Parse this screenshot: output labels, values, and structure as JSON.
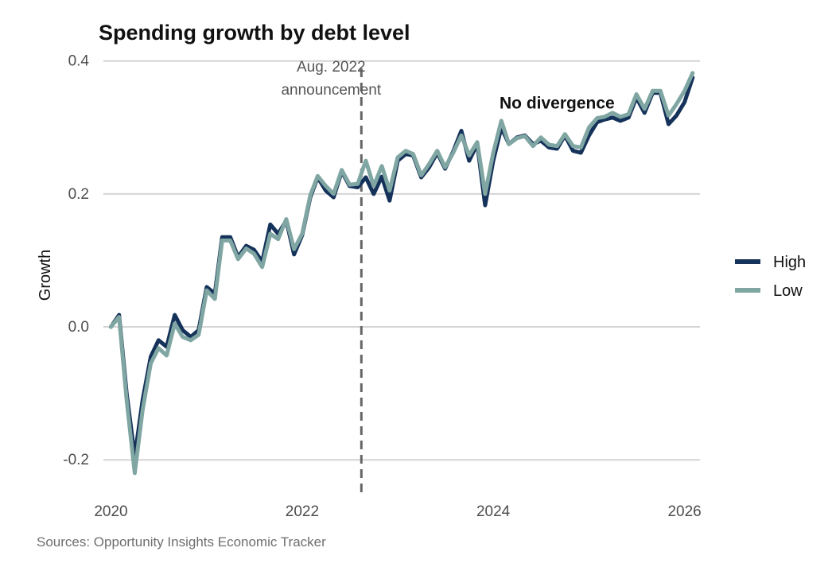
{
  "chart_data": {
    "type": "line",
    "title": "Spending growth by debt level",
    "xlabel": "",
    "ylabel": "Growth",
    "source": "Sources: Opportunity Insights Economic Tracker",
    "xlim": [
      "2019-11-15",
      "2026-03-01"
    ],
    "ylim": [
      -0.25,
      0.42
    ],
    "x_ticks": [
      "2020-01-01",
      "2022-01-01",
      "2024-01-01",
      "2026-01-01"
    ],
    "x_tick_labels": [
      "2020",
      "2022",
      "2024",
      "2026"
    ],
    "y_ticks": [
      -0.2,
      0.0,
      0.2,
      0.4
    ],
    "y_tick_labels": [
      "-0.2",
      "0.0",
      "0.2",
      "0.4"
    ],
    "grid": "horizontal",
    "legend": {
      "position": "right",
      "entries": [
        "High",
        "Low"
      ]
    },
    "colors": {
      "High": "#15325a",
      "Low": "#7fa6a2"
    },
    "annotations": [
      {
        "type": "vline",
        "x": "2022-08-15",
        "line1": "Aug. 2022",
        "line2": "announcement",
        "color": "#666666"
      },
      {
        "type": "text",
        "x": "2024-09-01",
        "y": 0.338,
        "text": "No divergence"
      }
    ],
    "x": [
      "2020-01-01",
      "2020-02-01",
      "2020-03-01",
      "2020-04-01",
      "2020-05-01",
      "2020-06-01",
      "2020-07-01",
      "2020-08-01",
      "2020-09-01",
      "2020-10-01",
      "2020-11-01",
      "2020-12-01",
      "2021-01-01",
      "2021-02-01",
      "2021-03-01",
      "2021-04-01",
      "2021-05-01",
      "2021-06-01",
      "2021-07-01",
      "2021-08-01",
      "2021-09-01",
      "2021-10-01",
      "2021-11-01",
      "2021-12-01",
      "2022-01-01",
      "2022-02-01",
      "2022-03-01",
      "2022-04-01",
      "2022-05-01",
      "2022-06-01",
      "2022-07-01",
      "2022-08-01",
      "2022-09-01",
      "2022-10-01",
      "2022-11-01",
      "2022-12-01",
      "2023-01-01",
      "2023-02-01",
      "2023-03-01",
      "2023-04-01",
      "2023-05-01",
      "2023-06-01",
      "2023-07-01",
      "2023-08-01",
      "2023-09-01",
      "2023-10-01",
      "2023-11-01",
      "2023-12-01",
      "2024-01-01",
      "2024-02-01",
      "2024-03-01",
      "2024-04-01",
      "2024-05-01",
      "2024-06-01",
      "2024-07-01",
      "2024-08-01",
      "2024-09-01",
      "2024-10-01",
      "2024-11-01",
      "2024-12-01",
      "2025-01-01",
      "2025-02-01",
      "2025-03-01",
      "2025-04-01",
      "2025-05-01",
      "2025-06-01",
      "2025-07-01",
      "2025-08-01",
      "2025-09-01",
      "2025-10-01",
      "2025-11-01",
      "2025-12-01",
      "2026-01-01",
      "2026-02-01"
    ],
    "series": [
      {
        "name": "High",
        "values": [
          0.0,
          0.018,
          -0.1,
          -0.195,
          -0.11,
          -0.045,
          -0.02,
          -0.03,
          0.018,
          -0.005,
          -0.015,
          -0.005,
          0.06,
          0.05,
          0.135,
          0.135,
          0.105,
          0.122,
          0.116,
          0.098,
          0.154,
          0.14,
          0.16,
          0.109,
          0.138,
          0.195,
          0.225,
          0.205,
          0.195,
          0.234,
          0.212,
          0.21,
          0.225,
          0.2,
          0.226,
          0.19,
          0.25,
          0.26,
          0.258,
          0.225,
          0.24,
          0.262,
          0.238,
          0.264,
          0.295,
          0.25,
          0.275,
          0.183,
          0.25,
          0.3,
          0.275,
          0.285,
          0.288,
          0.275,
          0.28,
          0.27,
          0.268,
          0.288,
          0.265,
          0.262,
          0.288,
          0.308,
          0.312,
          0.315,
          0.31,
          0.315,
          0.345,
          0.322,
          0.352,
          0.352,
          0.305,
          0.318,
          0.338,
          0.375
        ]
      },
      {
        "name": "Low",
        "values": [
          0.0,
          0.015,
          -0.11,
          -0.22,
          -0.125,
          -0.055,
          -0.032,
          -0.043,
          0.005,
          -0.015,
          -0.02,
          -0.012,
          0.055,
          0.042,
          0.13,
          0.13,
          0.102,
          0.118,
          0.11,
          0.09,
          0.14,
          0.132,
          0.162,
          0.117,
          0.14,
          0.198,
          0.227,
          0.212,
          0.2,
          0.236,
          0.214,
          0.215,
          0.25,
          0.212,
          0.242,
          0.205,
          0.255,
          0.265,
          0.26,
          0.228,
          0.245,
          0.265,
          0.24,
          0.262,
          0.288,
          0.258,
          0.278,
          0.2,
          0.262,
          0.31,
          0.275,
          0.284,
          0.287,
          0.272,
          0.285,
          0.274,
          0.272,
          0.29,
          0.272,
          0.27,
          0.3,
          0.314,
          0.316,
          0.322,
          0.316,
          0.32,
          0.35,
          0.328,
          0.355,
          0.355,
          0.318,
          0.335,
          0.355,
          0.382
        ]
      }
    ]
  }
}
